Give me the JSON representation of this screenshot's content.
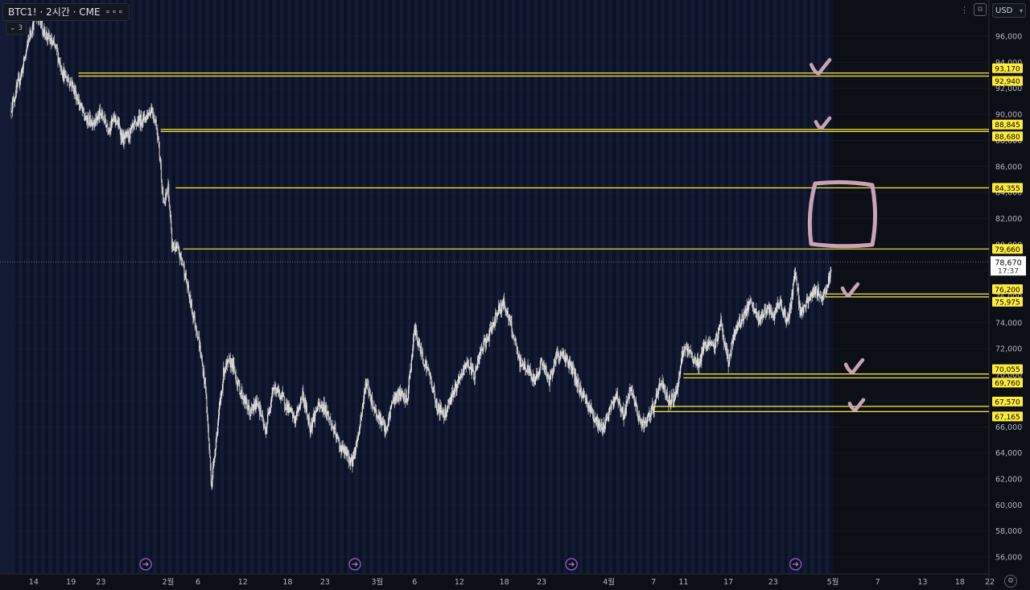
{
  "header": {
    "symbol": "BTC1! · 2시간 · CME",
    "menu_glyph": "∘∘∘",
    "legend_count": "3",
    "currency": "USD",
    "currency_caret": "▾"
  },
  "chart_data": {
    "type": "candlestick",
    "ylim": [
      54000,
      98500
    ],
    "y_ticks": [
      {
        "value": 96000,
        "label": "96,000"
      },
      {
        "value": 94000,
        "label": "94,000"
      },
      {
        "value": 92000,
        "label": "92,000"
      },
      {
        "value": 90000,
        "label": "90,000"
      },
      {
        "value": 88000,
        "label": "88,000"
      },
      {
        "value": 86000,
        "label": "86,000"
      },
      {
        "value": 84000,
        "label": "84,000"
      },
      {
        "value": 82000,
        "label": "82,000"
      },
      {
        "value": 80000,
        "label": "80,000"
      },
      {
        "value": 78000,
        "label": "78,000"
      },
      {
        "value": 76000,
        "label": "76,000"
      },
      {
        "value": 74000,
        "label": "74,000"
      },
      {
        "value": 72000,
        "label": "72,000"
      },
      {
        "value": 70000,
        "label": "70,000"
      },
      {
        "value": 68000,
        "label": "68,000"
      },
      {
        "value": 66000,
        "label": "66,000"
      },
      {
        "value": 64000,
        "label": "64,000"
      },
      {
        "value": 62000,
        "label": "62,000"
      },
      {
        "value": 60000,
        "label": "60,000"
      },
      {
        "value": 58000,
        "label": "58,000"
      },
      {
        "value": 56000,
        "label": "56,000"
      }
    ],
    "x_ticks": [
      {
        "label": "14",
        "day": 14
      },
      {
        "label": "19",
        "day": 19
      },
      {
        "label": "23",
        "day": 23
      },
      {
        "label": "2월",
        "day": 32
      },
      {
        "label": "6",
        "day": 36
      },
      {
        "label": "12",
        "day": 42
      },
      {
        "label": "18",
        "day": 48
      },
      {
        "label": "23",
        "day": 53
      },
      {
        "label": "3월",
        "day": 60
      },
      {
        "label": "6",
        "day": 65
      },
      {
        "label": "12",
        "day": 71
      },
      {
        "label": "18",
        "day": 77
      },
      {
        "label": "23",
        "day": 82
      },
      {
        "label": "4월",
        "day": 91
      },
      {
        "label": "7",
        "day": 97
      },
      {
        "label": "11",
        "day": 101
      },
      {
        "label": "17",
        "day": 107
      },
      {
        "label": "23",
        "day": 113
      },
      {
        "label": "5월",
        "day": 121
      },
      {
        "label": "7",
        "day": 127
      },
      {
        "label": "13",
        "day": 133
      },
      {
        "label": "18",
        "day": 138
      },
      {
        "label": "22",
        "day": 142
      }
    ],
    "session_markers_day": [
      29,
      57,
      86,
      116
    ],
    "price_path": [
      [
        11,
        90500
      ],
      [
        12.5,
        93500
      ],
      [
        13.5,
        96200
      ],
      [
        14.5,
        97800
      ],
      [
        15.2,
        96500
      ],
      [
        16,
        95800
      ],
      [
        17,
        95000
      ],
      [
        18,
        93000
      ],
      [
        19,
        92500
      ],
      [
        20,
        91000
      ],
      [
        21,
        89500
      ],
      [
        22,
        89500
      ],
      [
        23,
        90000
      ],
      [
        24,
        89000
      ],
      [
        25,
        89700
      ],
      [
        26,
        88000
      ],
      [
        27,
        88600
      ],
      [
        28,
        89500
      ],
      [
        29,
        89800
      ],
      [
        29.8,
        90500
      ],
      [
        30.5,
        89000
      ],
      [
        31,
        86000
      ],
      [
        31.4,
        82800
      ],
      [
        32,
        84500
      ],
      [
        32.5,
        80000
      ],
      [
        33.3,
        79500
      ],
      [
        34,
        78500
      ],
      [
        35,
        75500
      ],
      [
        36,
        73000
      ],
      [
        37,
        69000
      ],
      [
        37.8,
        61500
      ],
      [
        38.3,
        64500
      ],
      [
        39.5,
        70500
      ],
      [
        40.5,
        71000
      ],
      [
        41.5,
        69000
      ],
      [
        43,
        67000
      ],
      [
        44,
        68000
      ],
      [
        45,
        65500
      ],
      [
        46,
        69000
      ],
      [
        47,
        68500
      ],
      [
        48,
        67500
      ],
      [
        49,
        66500
      ],
      [
        50,
        68500
      ],
      [
        51,
        66000
      ],
      [
        52,
        67500
      ],
      [
        53,
        67500
      ],
      [
        54,
        66000
      ],
      [
        55,
        64500
      ],
      [
        56,
        63800
      ],
      [
        56.6,
        63200
      ],
      [
        57.5,
        65500
      ],
      [
        58.5,
        69500
      ],
      [
        59.5,
        67500
      ],
      [
        60.5,
        66500
      ],
      [
        61.2,
        65500
      ],
      [
        62,
        68000
      ],
      [
        63,
        68500
      ],
      [
        64,
        68000
      ],
      [
        65,
        73500
      ],
      [
        66,
        71500
      ],
      [
        67,
        70000
      ],
      [
        68,
        67500
      ],
      [
        69,
        67000
      ],
      [
        70,
        68500
      ],
      [
        71,
        69500
      ],
      [
        72,
        71000
      ],
      [
        73,
        70000
      ],
      [
        74,
        72000
      ],
      [
        75,
        73000
      ],
      [
        76,
        74800
      ],
      [
        77,
        75500
      ],
      [
        78,
        73500
      ],
      [
        79,
        71000
      ],
      [
        80,
        70500
      ],
      [
        81,
        69500
      ],
      [
        82,
        71000
      ],
      [
        83,
        69500
      ],
      [
        84,
        71500
      ],
      [
        85,
        71500
      ],
      [
        86,
        70500
      ],
      [
        87,
        69000
      ],
      [
        88,
        68000
      ],
      [
        89,
        66800
      ],
      [
        90,
        65800
      ],
      [
        91,
        67000
      ],
      [
        92,
        68500
      ],
      [
        93,
        66800
      ],
      [
        94,
        69000
      ],
      [
        95,
        66500
      ],
      [
        96,
        66200
      ],
      [
        97,
        67600
      ],
      [
        98,
        69500
      ],
      [
        99,
        68000
      ],
      [
        100,
        68500
      ],
      [
        101,
        72000
      ],
      [
        102,
        71500
      ],
      [
        103,
        70800
      ],
      [
        104,
        72500
      ],
      [
        105,
        72000
      ],
      [
        106,
        74000
      ],
      [
        107,
        71000
      ],
      [
        108,
        73500
      ],
      [
        109,
        74500
      ],
      [
        110,
        75500
      ],
      [
        111,
        74200
      ],
      [
        112,
        75000
      ],
      [
        113,
        74500
      ],
      [
        114,
        75500
      ],
      [
        115,
        74000
      ],
      [
        116,
        78200
      ],
      [
        116.6,
        74800
      ],
      [
        117.5,
        75500
      ],
      [
        118.5,
        76500
      ],
      [
        119.5,
        76000
      ],
      [
        120.3,
        76800
      ],
      [
        120.8,
        78600
      ]
    ],
    "levels": [
      {
        "price": 93170,
        "label": "93,170",
        "from_day": 20
      },
      {
        "price": 92940,
        "label": "92,940",
        "from_day": 20
      },
      {
        "price": 88845,
        "label": "88,845",
        "from_day": 31
      },
      {
        "price": 88680,
        "label": "88,680",
        "from_day": 31
      },
      {
        "price": 84355,
        "label": "84,355",
        "from_day": 33
      },
      {
        "price": 79660,
        "label": "79,660",
        "from_day": 34
      },
      {
        "price": 76200,
        "label": "76,200",
        "from_day": 120
      },
      {
        "price": 75975,
        "label": "75,975",
        "from_day": 120
      },
      {
        "price": 70055,
        "label": "70,055",
        "from_day": 101
      },
      {
        "price": 69760,
        "label": "69,760",
        "from_day": 101
      },
      {
        "price": 67570,
        "label": "67,570",
        "from_day": 97
      },
      {
        "price": 67165,
        "label": "67,165",
        "from_day": 97
      }
    ],
    "last_price": {
      "value": 78670,
      "label": "78,670",
      "timer": "17:37"
    },
    "level_color": "#ffeb3b",
    "annotation_color": "#c9a3b4"
  }
}
